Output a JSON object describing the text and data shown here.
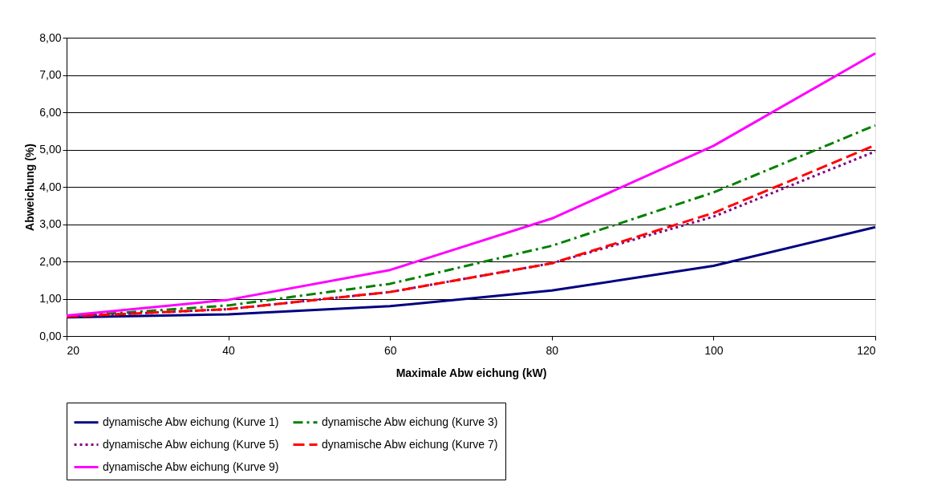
{
  "chart_data": {
    "type": "line",
    "xlabel": "Maximale Abw eichung (kW)",
    "ylabel": "Abweichung (%)",
    "x": [
      20,
      40,
      60,
      80,
      100,
      120
    ],
    "series": [
      {
        "name": "dynamische Abw eichung (Kurve 1)",
        "color": "#000080",
        "line_style": "solid",
        "values": [
          0.5,
          0.58,
          0.8,
          1.22,
          1.88,
          2.92
        ]
      },
      {
        "name": "dynamische Abw eichung (Kurve 3)",
        "color": "#008000",
        "line_style": "dashdot",
        "values": [
          0.52,
          0.82,
          1.4,
          2.42,
          3.85,
          5.65
        ]
      },
      {
        "name": "dynamische Abw eichung (Kurve 5)",
        "color": "#800080",
        "line_style": "dotted",
        "values": [
          0.52,
          0.72,
          1.18,
          1.95,
          3.2,
          4.95
        ]
      },
      {
        "name": "dynamische Abw eichung (Kurve 7)",
        "color": "#ff0000",
        "line_style": "dashed",
        "values": [
          0.52,
          0.72,
          1.18,
          1.95,
          3.3,
          5.12
        ]
      },
      {
        "name": "dynamische Abw eichung (Kurve 9)",
        "color": "#ff00ff",
        "line_style": "solid",
        "values": [
          0.55,
          0.97,
          1.77,
          3.15,
          5.1,
          7.58
        ]
      }
    ],
    "xlim": [
      20,
      120
    ],
    "xticks": [
      20,
      40,
      60,
      80,
      100,
      120
    ],
    "ylim": [
      0,
      8
    ],
    "yticks": [
      {
        "value": 0,
        "label": "0,00"
      },
      {
        "value": 1,
        "label": "1,00"
      },
      {
        "value": 2,
        "label": "2,00"
      },
      {
        "value": 3,
        "label": "3,00"
      },
      {
        "value": 4,
        "label": "4,00"
      },
      {
        "value": 5,
        "label": "5,00"
      },
      {
        "value": 6,
        "label": "6,00"
      },
      {
        "value": 7,
        "label": "7,00"
      },
      {
        "value": 8,
        "label": "8,00"
      }
    ],
    "grid": "y",
    "legend": "bottom",
    "marker": "none"
  }
}
